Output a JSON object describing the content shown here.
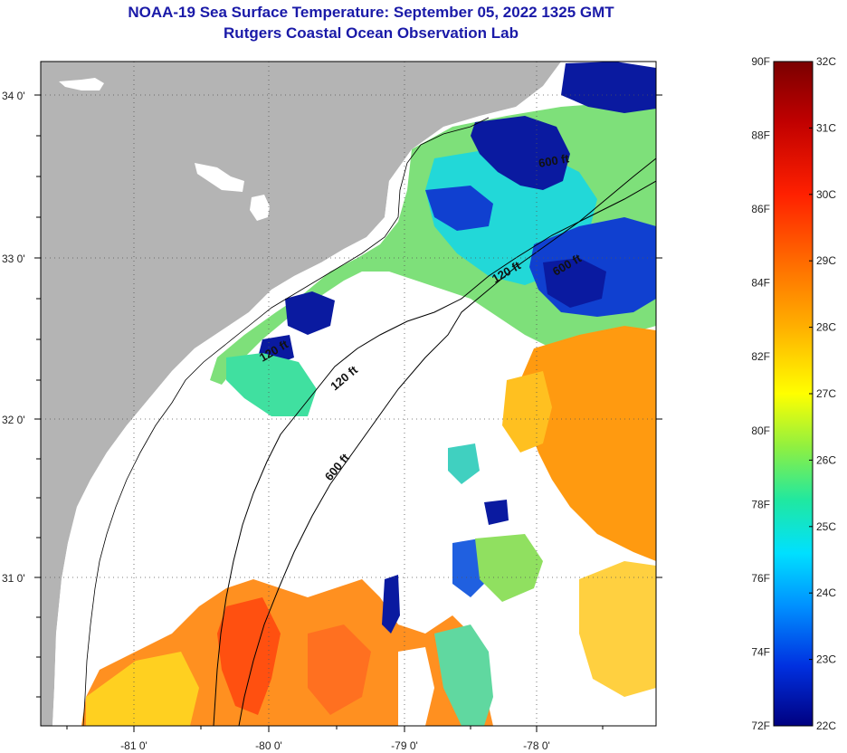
{
  "title": {
    "line1": "NOAA-19 Sea Surface Temperature:  September 05, 2022 1325 GMT",
    "line2": "Rutgers Coastal Ocean Observation Lab"
  },
  "axes": {
    "lat_labels": [
      "34 0'",
      "33 0'",
      "32 0'",
      "31 0'"
    ],
    "lon_labels": [
      "-81 0'",
      "-80 0'",
      "-79 0'",
      "-78 0'"
    ]
  },
  "contours": {
    "labels": [
      "600 ft",
      "120 ft",
      "600 ft",
      "120 ft",
      "600 ft",
      "120 ft"
    ]
  },
  "colorbar": {
    "fahrenheit": [
      "90F",
      "88F",
      "86F",
      "84F",
      "82F",
      "80F",
      "78F",
      "76F",
      "74F",
      "72F"
    ],
    "celsius": [
      "32C",
      "31C",
      "30C",
      "29C",
      "28C",
      "27C",
      "26C",
      "25C",
      "24C",
      "23C",
      "22C"
    ],
    "colors": [
      "#7a0000",
      "#c00000",
      "#ff2000",
      "#ff6a00",
      "#ffb000",
      "#ffff00",
      "#90f040",
      "#20e8a0",
      "#00e0ff",
      "#0090ff",
      "#0030e0",
      "#000080"
    ]
  },
  "colors": {
    "land": "#b4b4b4",
    "no_data": "#ffffff",
    "title": "#1a1aa8"
  }
}
